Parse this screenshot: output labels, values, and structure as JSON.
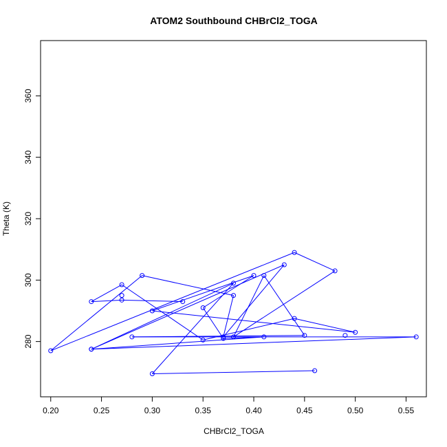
{
  "chart_data": {
    "type": "line",
    "title": "ATOM2 Southbound CHBrCl2_TOGA",
    "xlabel": "CHBrCl2_TOGA",
    "ylabel": "Theta (K)",
    "xlim": [
      0.19,
      0.57
    ],
    "ylim": [
      262,
      378
    ],
    "xticks": [
      "0.20",
      "0.25",
      "0.30",
      "0.35",
      "0.40",
      "0.45",
      "0.50",
      "0.55"
    ],
    "xtick_values": [
      0.2,
      0.25,
      0.3,
      0.35,
      0.4,
      0.45,
      0.5,
      0.55
    ],
    "yticks": [
      "280",
      "300",
      "320",
      "340",
      "360"
    ],
    "ytick_values": [
      280,
      300,
      320,
      340,
      360
    ],
    "grid": false,
    "series": [
      {
        "color": "#0000ff",
        "marker": "open-circle",
        "x": [
          0.46,
          0.3,
          0.38,
          0.24,
          0.43,
          0.37,
          0.38,
          0.29,
          0.2,
          0.44,
          0.48,
          0.38,
          0.41,
          0.45,
          0.28,
          0.56,
          0.24,
          0.41,
          0.37,
          0.35,
          0.4,
          0.3,
          0.5,
          0.44,
          0.35,
          0.27,
          0.24,
          0.27,
          0.33
        ],
        "y": [
          270.5,
          269.5,
          299.0,
          277.5,
          305.0,
          281.5,
          295.0,
          301.5,
          277.0,
          309.0,
          303.0,
          281.5,
          301.5,
          282.0,
          281.5,
          281.5,
          277.5,
          281.5,
          281.0,
          291.0,
          301.5,
          290.0,
          283.0,
          287.5,
          280.5,
          298.5,
          293.0,
          293.5,
          293.0
        ]
      }
    ],
    "isolated_points": [
      {
        "x": 0.27,
        "y": 295.0
      },
      {
        "x": 0.49,
        "y": 282.0
      }
    ]
  }
}
